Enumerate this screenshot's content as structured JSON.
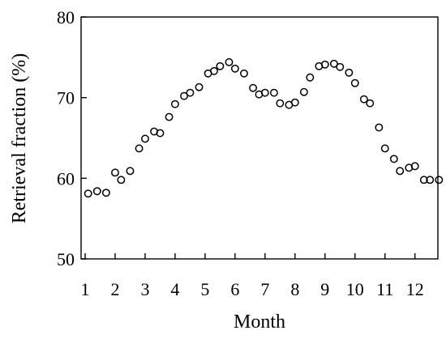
{
  "chart_data": {
    "type": "scatter",
    "xlabel": "Month",
    "ylabel": "Retrieval fraction (%)",
    "xlim": [
      1,
      12.9
    ],
    "ylim": [
      50,
      80
    ],
    "xticks": [
      1,
      2,
      3,
      4,
      5,
      6,
      7,
      8,
      9,
      10,
      11,
      12
    ],
    "xtick_labels": [
      "1",
      "2",
      "3",
      "4",
      "5",
      "6",
      "7",
      "8",
      "9",
      "10",
      "11",
      "12"
    ],
    "yticks": [
      50,
      60,
      70,
      80
    ],
    "ytick_labels": [
      "50",
      "60",
      "70",
      "80"
    ],
    "grid": false,
    "legend": "none",
    "marker": "open-circle",
    "x": [
      1.1,
      1.4,
      1.7,
      2.0,
      2.2,
      2.5,
      2.8,
      3.0,
      3.3,
      3.5,
      3.8,
      4.0,
      4.3,
      4.5,
      4.8,
      5.1,
      5.3,
      5.5,
      5.8,
      6.0,
      6.3,
      6.6,
      6.8,
      7.0,
      7.3,
      7.5,
      7.8,
      8.0,
      8.3,
      8.5,
      8.8,
      9.0,
      9.3,
      9.5,
      9.8,
      10.0,
      10.3,
      10.5,
      10.8,
      11.0,
      11.3,
      11.5,
      11.8,
      12.0,
      12.3,
      12.5,
      12.8
    ],
    "y": [
      58.1,
      58.4,
      58.2,
      60.7,
      59.8,
      60.9,
      63.7,
      64.9,
      65.8,
      65.6,
      67.6,
      69.2,
      70.2,
      70.6,
      71.3,
      73.0,
      73.3,
      73.9,
      74.4,
      73.6,
      73.0,
      71.2,
      70.4,
      70.6,
      70.6,
      69.3,
      69.1,
      69.4,
      70.7,
      72.5,
      73.9,
      74.1,
      74.2,
      73.8,
      73.1,
      71.8,
      69.8,
      69.3,
      66.3,
      63.7,
      62.4,
      60.9,
      61.3,
      61.5,
      59.8,
      59.8,
      59.8
    ]
  }
}
